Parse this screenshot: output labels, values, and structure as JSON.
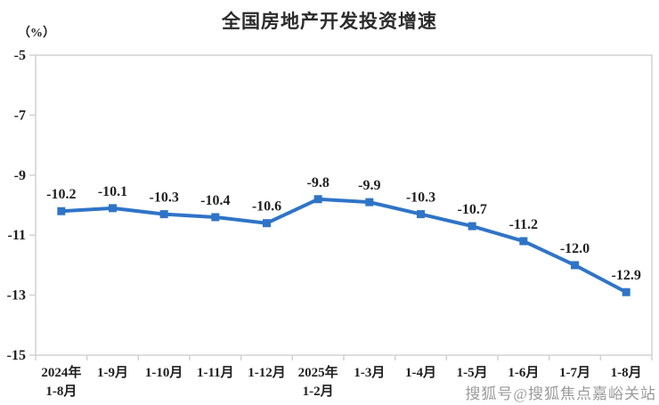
{
  "chart_data": {
    "type": "line",
    "title": "全国房地产开发投资增速",
    "unit_label": "（%）",
    "categories": [
      "2024年\n1-8月",
      "1-9月",
      "1-10月",
      "1-11月",
      "1-12月",
      "2025年\n1-2月",
      "1-3月",
      "1-4月",
      "1-5月",
      "1-6月",
      "1-7月",
      "1-8月"
    ],
    "values": [
      -10.2,
      -10.1,
      -10.3,
      -10.4,
      -10.6,
      -9.8,
      -9.9,
      -10.3,
      -10.7,
      -11.2,
      -12.0,
      -12.9
    ],
    "data_labels": [
      "-10.2",
      "-10.1",
      "-10.3",
      "-10.4",
      "-10.6",
      "-9.8",
      "-9.9",
      "-10.3",
      "-10.7",
      "-11.2",
      "-12.0",
      "-12.9"
    ],
    "ylim": [
      -15,
      -5
    ],
    "yticks": [
      -5,
      -7,
      -9,
      -11,
      -13,
      -15
    ],
    "grid": false,
    "legend_position": "none",
    "line_color": "#2E74C8",
    "marker_shape": "square",
    "label_color": "#1f1f1f",
    "axis_line_color": "#d2d2d2"
  },
  "watermark": {
    "text": "搜狐号@搜狐焦点嘉峪关站"
  }
}
